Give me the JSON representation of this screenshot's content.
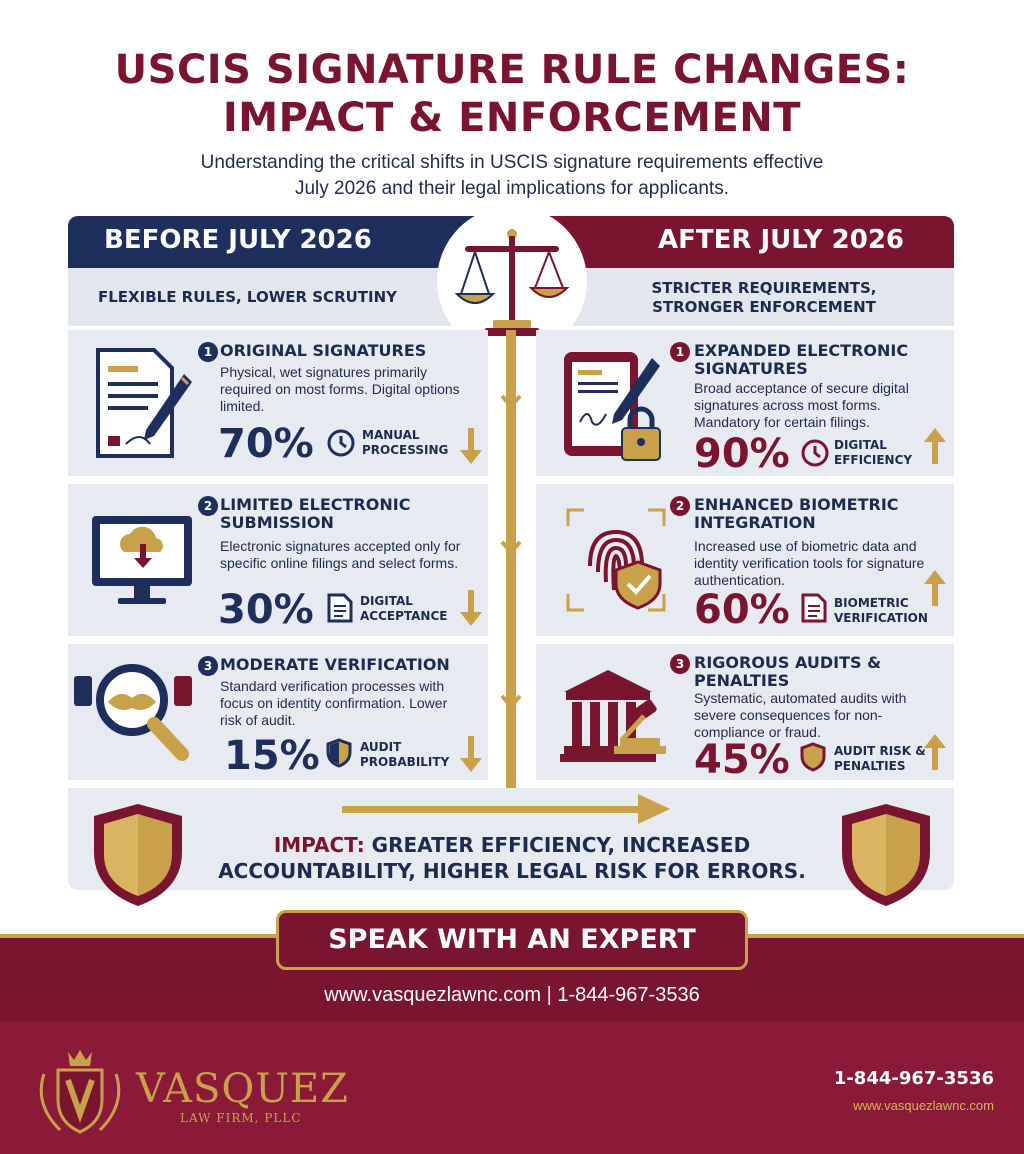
{
  "header": {
    "title_line1": "USCIS SIGNATURE RULE CHANGES:",
    "title_line2": "IMPACT & ENFORCEMENT",
    "subtitle_line1": "Understanding the critical shifts in USCIS signature requirements effective",
    "subtitle_line2": "July 2026 and their legal implications for applicants."
  },
  "before": {
    "heading": "BEFORE JULY 2026",
    "subheading": "FLEXIBLE RULES, LOWER SCRUTINY",
    "items": [
      {
        "num": "1",
        "title": "ORIGINAL SIGNATURES",
        "desc": "Physical, wet signatures primarily required on most forms. Digital options limited.",
        "value": "70%",
        "metric": "MANUAL PROCESSING",
        "trend": "down"
      },
      {
        "num": "2",
        "title": "LIMITED ELECTRONIC SUBMISSION",
        "desc": "Electronic signatures accepted only for specific online filings and select forms.",
        "value": "30%",
        "metric": "DIGITAL ACCEPTANCE",
        "trend": "down"
      },
      {
        "num": "3",
        "title": "MODERATE VERIFICATION",
        "desc": "Standard verification processes with focus on identity confirmation. Lower risk of audit.",
        "value": "15%",
        "metric": "AUDIT PROBABILITY",
        "trend": "down"
      }
    ]
  },
  "after": {
    "heading": "AFTER JULY 2026",
    "subheading": "STRICTER REQUIREMENTS, STRONGER ENFORCEMENT",
    "items": [
      {
        "num": "1",
        "title": "EXPANDED ELECTRONIC SIGNATURES",
        "desc": "Broad acceptance of secure digital signatures across most forms. Mandatory for certain filings.",
        "value": "90%",
        "metric": "DIGITAL EFFICIENCY",
        "trend": "up"
      },
      {
        "num": "2",
        "title": "ENHANCED BIOMETRIC INTEGRATION",
        "desc": "Increased use of biometric data and identity verification tools for signature authentication.",
        "value": "60%",
        "metric": "BIOMETRIC VERIFICATION",
        "trend": "up"
      },
      {
        "num": "3",
        "title": "RIGOROUS AUDITS & PENALTIES",
        "desc": "Systematic, automated audits with severe consequences for non-compliance or fraud.",
        "value": "45%",
        "metric": "AUDIT RISK & PENALTIES",
        "trend": "up"
      }
    ]
  },
  "impact": {
    "label": "IMPACT:",
    "text_line1": "GREATER EFFICIENCY, INCREASED",
    "text_line2": "ACCOUNTABILITY, HIGHER LEGAL RISK FOR ERRORS."
  },
  "cta": {
    "button": "SPEAK WITH AN EXPERT",
    "contact": "www.vasquezlawnc.com | 1-844-967-3536"
  },
  "footer": {
    "firm_name": "VASQUEZ",
    "firm_sub": "LAW FIRM, PLLC",
    "phone": "1-844-967-3536",
    "website": "www.vasquezlawnc.com"
  },
  "colors": {
    "navy": "#1e2f5e",
    "maroon": "#7a1530",
    "gold": "#c9a14a",
    "panel": "#e7eaf0"
  }
}
